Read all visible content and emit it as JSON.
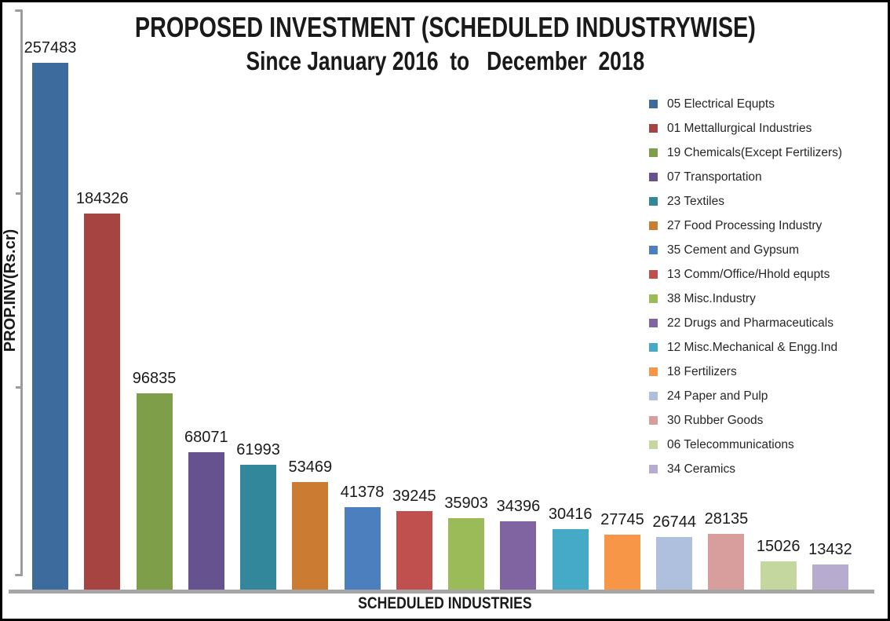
{
  "title": {
    "line1": "PROPOSED INVESTMENT (SCHEDULED INDUSTRYWISE)",
    "line2": "Since January 2016  to   December  2018"
  },
  "axes": {
    "y_label": "PROP.INV(Rs.cr)",
    "x_label": "SCHEDULED INDUSTRIES"
  },
  "colors": {
    "axis_line": "#9c9c9c",
    "baseline": "#a6a6a6",
    "text": "#1a1a1a",
    "background": "#ffffff",
    "border": "#000000"
  },
  "chart_data": {
    "type": "bar",
    "title": "PROPOSED INVESTMENT (SCHEDULED INDUSTRYWISE) Since January 2016 to December 2018",
    "xlabel": "SCHEDULED INDUSTRIES",
    "ylabel": "PROP.INV(Rs.cr)",
    "ylim": [
      0,
      290000
    ],
    "grid": false,
    "legend_position": "right-inside",
    "value_labels_shown": true,
    "categories": [
      "05 Electrical Equpts",
      "01 Mettallurgical Industries",
      "19 Chemicals(Except Fertilizers)",
      "07 Transportation",
      "23 Textiles",
      "27 Food Processing Industry",
      "35 Cement and Gypsum",
      "13 Comm/Office/Hhold equpts",
      "38 Misc.Industry",
      "22 Drugs and Pharmaceuticals",
      "12 Misc.Mechanical & Engg.Ind",
      "18 Fertilizers",
      "24 Paper and Pulp",
      "30 Rubber Goods",
      "06 Telecommunications",
      "34 Ceramics"
    ],
    "values": [
      257483,
      184326,
      96835,
      68071,
      61993,
      53469,
      41378,
      39245,
      35903,
      34396,
      30416,
      27745,
      26744,
      28135,
      15026,
      13432
    ],
    "bar_colors": [
      "#3d6b9e",
      "#a64441",
      "#7f9e49",
      "#675290",
      "#33879b",
      "#cc7b33",
      "#4c7fbe",
      "#c0504d",
      "#9bbb59",
      "#8064a2",
      "#45aac5",
      "#f79646",
      "#afc0df",
      "#d89e9d",
      "#c4d79f",
      "#b7acd0"
    ]
  }
}
